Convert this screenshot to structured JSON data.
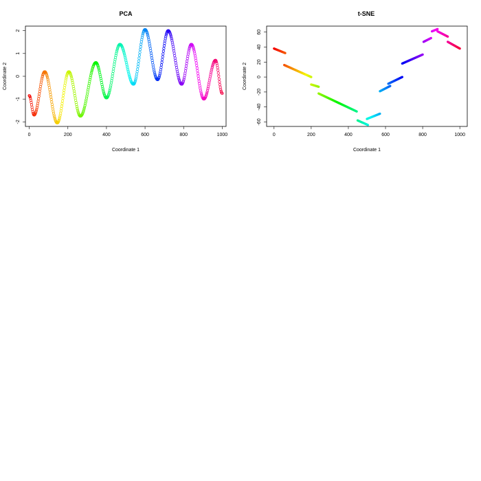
{
  "chart_data": [
    {
      "type": "scatter",
      "title": "PCA",
      "xlabel": "Coordinate 1",
      "ylabel": "Coordinate 2",
      "xlim": [
        -20,
        1020
      ],
      "ylim": [
        -2.2,
        2.2
      ],
      "xticks": [
        "0",
        "200",
        "400",
        "600",
        "800",
        "1000"
      ],
      "xtick_values": [
        0,
        200,
        400,
        600,
        800,
        1000
      ],
      "yticks": [
        "-2",
        "-1",
        "0",
        "1",
        "2"
      ],
      "ytick_values": [
        -2,
        -1,
        0,
        1,
        2
      ],
      "grid": false,
      "marker": "open-circle",
      "color_scale": "rainbow by point index (red→orange→yellow→green→cyan→blue→purple→magenta→red)",
      "curve_description_points": {
        "x": [
          0,
          25,
          80,
          145,
          205,
          265,
          345,
          400,
          470,
          540,
          600,
          665,
          720,
          790,
          840,
          905,
          965,
          1000
        ],
        "y": [
          -0.85,
          -1.7,
          0.2,
          -2.05,
          0.2,
          -1.75,
          0.6,
          -0.95,
          1.4,
          -0.35,
          2.05,
          -0.15,
          2.0,
          -0.35,
          1.4,
          -1.0,
          0.7,
          -0.75
        ]
      }
    },
    {
      "type": "scatter",
      "title": "t-SNE",
      "xlabel": "Coordinate 1",
      "ylabel": "Coordinate 2",
      "xlim": [
        -40,
        1040
      ],
      "ylim": [
        -66,
        68
      ],
      "xticks": [
        "0",
        "200",
        "400",
        "600",
        "800",
        "1000"
      ],
      "xtick_values": [
        0,
        200,
        400,
        600,
        800,
        1000
      ],
      "yticks": [
        "-60",
        "-40",
        "-20",
        "0",
        "20",
        "40",
        "60"
      ],
      "ytick_values": [
        -60,
        -40,
        -20,
        0,
        20,
        40,
        60
      ],
      "grid": false,
      "marker": "filled-circle",
      "color_scale": "rainbow by point index",
      "segments": [
        {
          "x": [
            0,
            60
          ],
          "y": [
            38,
            32
          ]
        },
        {
          "x": [
            55,
            200
          ],
          "y": [
            16,
            0
          ]
        },
        {
          "x": [
            200,
            240
          ],
          "y": [
            -10,
            -13
          ]
        },
        {
          "x": [
            240,
            445
          ],
          "y": [
            -22,
            -46
          ]
        },
        {
          "x": [
            450,
            505
          ],
          "y": [
            -58,
            -64
          ]
        },
        {
          "x": [
            500,
            570
          ],
          "y": [
            -56,
            -49
          ]
        },
        {
          "x": [
            570,
            625
          ],
          "y": [
            -19,
            -12
          ]
        },
        {
          "x": [
            615,
            690
          ],
          "y": [
            -9,
            0
          ]
        },
        {
          "x": [
            690,
            800
          ],
          "y": [
            18,
            30
          ]
        },
        {
          "x": [
            805,
            845
          ],
          "y": [
            47,
            52
          ]
        },
        {
          "x": [
            850,
            880
          ],
          "y": [
            61,
            64
          ]
        },
        {
          "x": [
            880,
            935
          ],
          "y": [
            61,
            54
          ]
        },
        {
          "x": [
            935,
            1000
          ],
          "y": [
            47,
            38
          ]
        }
      ]
    }
  ]
}
